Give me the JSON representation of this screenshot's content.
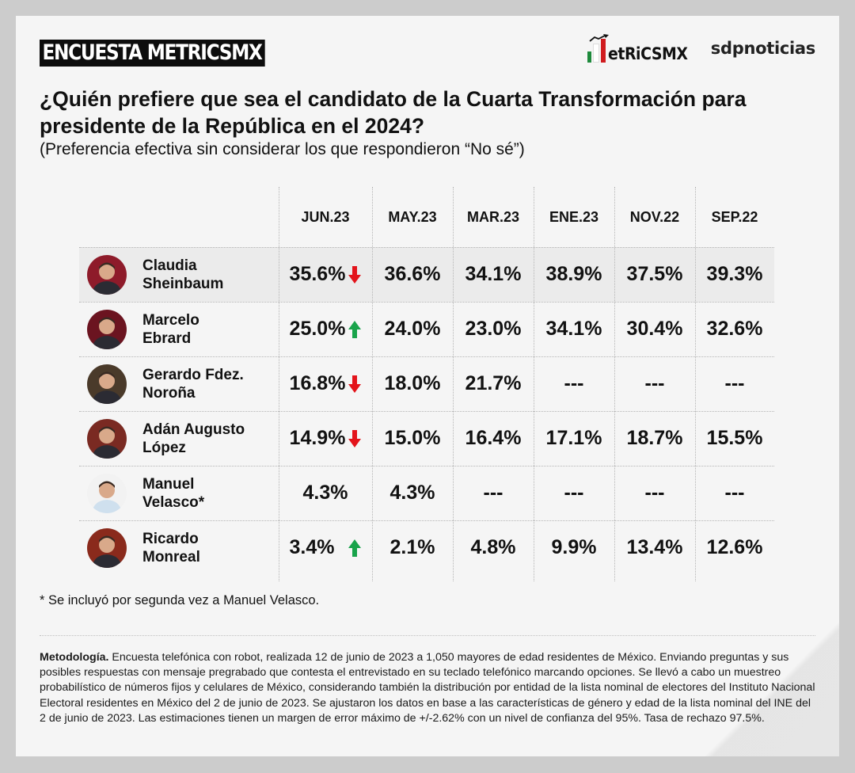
{
  "header": {
    "badge": "ENCUESTA METRICSMX",
    "logo_metrics": "etRiCSMX",
    "logo_sdp": "sdpnoticias",
    "title": "¿Quién prefiere que sea el candidato de la Cuarta Transformación para presidente de la República en el 2024?",
    "subtitle": "(Preferencia efectiva sin considerar los que respondieron “No sé”)"
  },
  "colors": {
    "down_arrow": "#e3141b",
    "up_arrow": "#18a34a",
    "badge_bg": "#0d0d0d",
    "card_bg": "#f5f5f5",
    "highlight_row": "#ebebeb"
  },
  "table": {
    "columns": [
      "JUN.23",
      "MAY.23",
      "MAR.23",
      "ENE.23",
      "NOV.22",
      "SEP.22"
    ],
    "rows": [
      {
        "name_line1": "Claudia",
        "name_line2": "Sheinbaum",
        "avatar_color": "#8e1b2a",
        "trend": "down",
        "values": [
          "35.6%",
          "36.6%",
          "34.1%",
          "38.9%",
          "37.5%",
          "39.3%"
        ],
        "highlight": true
      },
      {
        "name_line1": "Marcelo",
        "name_line2": "Ebrard",
        "avatar_color": "#6b1420",
        "trend": "up",
        "values": [
          "25.0%",
          "24.0%",
          "23.0%",
          "34.1%",
          "30.4%",
          "32.6%"
        ],
        "highlight": false
      },
      {
        "name_line1": "Gerardo Fdez.",
        "name_line2": "Noroña",
        "avatar_color": "#4a3a2a",
        "trend": "down",
        "values": [
          "16.8%",
          "18.0%",
          "21.7%",
          "---",
          "---",
          "---"
        ],
        "highlight": false
      },
      {
        "name_line1": "Adán Augusto",
        "name_line2": "López",
        "avatar_color": "#7a2a22",
        "trend": "down",
        "values": [
          "14.9%",
          "15.0%",
          "16.4%",
          "17.1%",
          "18.7%",
          "15.5%"
        ],
        "highlight": false
      },
      {
        "name_line1": "Manuel",
        "name_line2": "Velasco*",
        "avatar_color": "#f2f2f2",
        "trend": "none",
        "values": [
          "4.3%",
          "4.3%",
          "---",
          "---",
          "---",
          "---"
        ],
        "highlight": false
      },
      {
        "name_line1": "Ricardo",
        "name_line2": "Monreal",
        "avatar_color": "#8a2a1c",
        "trend": "up",
        "values": [
          "3.4%",
          "2.1%",
          "4.8%",
          "9.9%",
          "13.4%",
          "12.6%"
        ],
        "highlight": false
      }
    ]
  },
  "footnote": "* Se incluyó por segunda vez a Manuel Velasco.",
  "methodology": {
    "label": "Metodología.",
    "text": " Encuesta telefónica con robot, realizada 12 de junio de 2023 a 1,050 mayores de edad residentes de México. Enviando preguntas y sus posibles respuestas con mensaje pregrabado que contesta el entrevistado en su teclado telefónico marcando opciones. Se llevó a cabo un muestreo probabilístico de números fijos y celulares de México, considerando también la distribución por entidad de la lista nominal de electores del Instituto Nacional Electoral residentes en México del 2 de junio de 2023. Se ajustaron los datos en base a las características de género y edad de la lista nominal del INE del 2 de junio de 2023. Las estimaciones tienen un margen de error máximo de +/-2.62% con un nivel de confianza del 95%. Tasa de rechazo 97.5%."
  },
  "chart_data": {
    "type": "table",
    "title": "¿Quién prefiere que sea el candidato de la Cuarta Transformación para presidente de la República en el 2024?",
    "subtitle": "(Preferencia efectiva sin considerar los que respondieron “No sé”)",
    "categories": [
      "JUN.23",
      "MAY.23",
      "MAR.23",
      "ENE.23",
      "NOV.22",
      "SEP.22"
    ],
    "series": [
      {
        "name": "Claudia Sheinbaum",
        "values": [
          35.6,
          36.6,
          34.1,
          38.9,
          37.5,
          39.3
        ],
        "trend_latest": "down"
      },
      {
        "name": "Marcelo Ebrard",
        "values": [
          25.0,
          24.0,
          23.0,
          34.1,
          30.4,
          32.6
        ],
        "trend_latest": "up"
      },
      {
        "name": "Gerardo Fdez. Noroña",
        "values": [
          16.8,
          18.0,
          21.7,
          null,
          null,
          null
        ],
        "trend_latest": "down"
      },
      {
        "name": "Adán Augusto López",
        "values": [
          14.9,
          15.0,
          16.4,
          17.1,
          18.7,
          15.5
        ],
        "trend_latest": "down"
      },
      {
        "name": "Manuel Velasco*",
        "values": [
          4.3,
          4.3,
          null,
          null,
          null,
          null
        ],
        "trend_latest": "none"
      },
      {
        "name": "Ricardo Monreal",
        "values": [
          3.4,
          2.1,
          4.8,
          9.9,
          13.4,
          12.6
        ],
        "trend_latest": "up"
      }
    ],
    "unit": "%",
    "missing_marker": "---"
  }
}
